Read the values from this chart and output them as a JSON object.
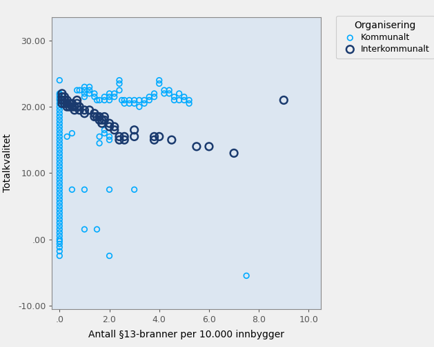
{
  "title": "",
  "xlabel": "Antall §13-branner per 10.000 innbygger",
  "ylabel": "Totalkvalitet",
  "xlim": [
    -0.3,
    10.5
  ],
  "ylim": [
    -10.5,
    33.5
  ],
  "xticks": [
    0,
    2,
    4,
    6,
    8,
    10
  ],
  "yticks": [
    -10,
    0,
    10,
    20,
    30
  ],
  "ytick_labels": [
    "-10.00",
    ".00",
    "10.00",
    "20.00",
    "30.00"
  ],
  "xtick_labels": [
    ".0",
    "2.0",
    "4.0",
    "6.0",
    "8.0",
    "10.0"
  ],
  "background_color": "#dce6f1",
  "kommunalt_color": "#00aaff",
  "interkommunalt_color": "#1a3a6e",
  "legend_title": "Organisering",
  "kommunalt_points": [
    [
      0.0,
      24.0
    ],
    [
      0.0,
      22.0
    ],
    [
      0.0,
      21.8
    ],
    [
      0.0,
      21.5
    ],
    [
      0.0,
      21.2
    ],
    [
      0.0,
      21.0
    ],
    [
      0.0,
      20.5
    ],
    [
      0.0,
      20.0
    ],
    [
      0.0,
      19.5
    ],
    [
      0.0,
      19.0
    ],
    [
      0.0,
      18.5
    ],
    [
      0.0,
      18.0
    ],
    [
      0.0,
      17.5
    ],
    [
      0.0,
      17.0
    ],
    [
      0.0,
      16.5
    ],
    [
      0.0,
      16.0
    ],
    [
      0.0,
      15.5
    ],
    [
      0.0,
      15.0
    ],
    [
      0.0,
      14.5
    ],
    [
      0.0,
      14.0
    ],
    [
      0.0,
      13.5
    ],
    [
      0.0,
      13.0
    ],
    [
      0.0,
      12.5
    ],
    [
      0.0,
      12.0
    ],
    [
      0.0,
      11.5
    ],
    [
      0.0,
      11.0
    ],
    [
      0.0,
      10.5
    ],
    [
      0.0,
      10.0
    ],
    [
      0.0,
      9.5
    ],
    [
      0.0,
      9.0
    ],
    [
      0.0,
      8.5
    ],
    [
      0.0,
      8.0
    ],
    [
      0.0,
      7.5
    ],
    [
      0.0,
      7.0
    ],
    [
      0.0,
      6.5
    ],
    [
      0.0,
      6.0
    ],
    [
      0.0,
      5.5
    ],
    [
      0.0,
      5.0
    ],
    [
      0.0,
      4.5
    ],
    [
      0.0,
      4.0
    ],
    [
      0.0,
      3.5
    ],
    [
      0.0,
      3.0
    ],
    [
      0.0,
      2.5
    ],
    [
      0.0,
      2.0
    ],
    [
      0.0,
      1.5
    ],
    [
      0.0,
      1.0
    ],
    [
      0.0,
      0.5
    ],
    [
      0.0,
      0.0
    ],
    [
      0.0,
      -0.3
    ],
    [
      0.0,
      -0.7
    ],
    [
      0.0,
      -1.2
    ],
    [
      0.0,
      -1.8
    ],
    [
      0.0,
      -2.5
    ],
    [
      0.5,
      7.5
    ],
    [
      1.0,
      1.5
    ],
    [
      1.0,
      7.5
    ],
    [
      1.5,
      1.5
    ],
    [
      2.0,
      -2.5
    ],
    [
      2.0,
      7.5
    ],
    [
      3.0,
      7.5
    ],
    [
      0.3,
      15.5
    ],
    [
      0.5,
      16.0
    ],
    [
      0.7,
      22.5
    ],
    [
      0.8,
      22.5
    ],
    [
      1.0,
      23.0
    ],
    [
      1.0,
      22.5
    ],
    [
      1.0,
      22.0
    ],
    [
      1.0,
      21.5
    ],
    [
      1.2,
      23.0
    ],
    [
      1.2,
      22.5
    ],
    [
      1.2,
      22.0
    ],
    [
      1.4,
      22.0
    ],
    [
      1.4,
      21.5
    ],
    [
      1.5,
      21.0
    ],
    [
      1.6,
      21.0
    ],
    [
      1.6,
      15.5
    ],
    [
      1.6,
      14.5
    ],
    [
      1.8,
      21.5
    ],
    [
      1.8,
      21.0
    ],
    [
      1.8,
      16.5
    ],
    [
      1.8,
      16.0
    ],
    [
      2.0,
      22.0
    ],
    [
      2.0,
      21.5
    ],
    [
      2.0,
      21.0
    ],
    [
      2.0,
      15.5
    ],
    [
      2.0,
      15.0
    ],
    [
      2.2,
      22.0
    ],
    [
      2.2,
      21.5
    ],
    [
      2.4,
      24.0
    ],
    [
      2.4,
      23.5
    ],
    [
      2.4,
      22.5
    ],
    [
      2.5,
      21.0
    ],
    [
      2.6,
      21.0
    ],
    [
      2.6,
      20.5
    ],
    [
      2.8,
      21.0
    ],
    [
      2.8,
      20.5
    ],
    [
      3.0,
      21.0
    ],
    [
      3.0,
      20.5
    ],
    [
      3.2,
      21.0
    ],
    [
      3.2,
      20.0
    ],
    [
      3.4,
      21.0
    ],
    [
      3.4,
      20.5
    ],
    [
      3.6,
      21.5
    ],
    [
      3.6,
      21.0
    ],
    [
      3.8,
      22.0
    ],
    [
      3.8,
      21.5
    ],
    [
      4.0,
      24.0
    ],
    [
      4.0,
      23.5
    ],
    [
      4.2,
      22.5
    ],
    [
      4.2,
      22.0
    ],
    [
      4.4,
      22.5
    ],
    [
      4.4,
      22.0
    ],
    [
      4.6,
      21.5
    ],
    [
      4.6,
      21.0
    ],
    [
      4.8,
      22.0
    ],
    [
      4.8,
      21.0
    ],
    [
      5.0,
      21.5
    ],
    [
      5.0,
      21.0
    ],
    [
      5.2,
      21.0
    ],
    [
      5.2,
      20.5
    ],
    [
      7.5,
      -5.5
    ]
  ],
  "interkommunalt_points": [
    [
      0.1,
      22.0
    ],
    [
      0.1,
      21.5
    ],
    [
      0.1,
      21.0
    ],
    [
      0.1,
      20.5
    ],
    [
      0.2,
      21.5
    ],
    [
      0.2,
      21.0
    ],
    [
      0.2,
      20.5
    ],
    [
      0.3,
      21.0
    ],
    [
      0.3,
      20.5
    ],
    [
      0.3,
      20.0
    ],
    [
      0.4,
      20.5
    ],
    [
      0.4,
      20.0
    ],
    [
      0.5,
      20.5
    ],
    [
      0.5,
      20.0
    ],
    [
      0.6,
      20.0
    ],
    [
      0.6,
      19.5
    ],
    [
      0.7,
      21.0
    ],
    [
      0.7,
      20.5
    ],
    [
      0.7,
      20.0
    ],
    [
      0.8,
      20.0
    ],
    [
      0.8,
      19.5
    ],
    [
      1.0,
      19.5
    ],
    [
      1.0,
      19.0
    ],
    [
      1.2,
      19.5
    ],
    [
      1.4,
      19.0
    ],
    [
      1.4,
      18.5
    ],
    [
      1.5,
      18.5
    ],
    [
      1.6,
      18.5
    ],
    [
      1.6,
      18.0
    ],
    [
      1.7,
      18.0
    ],
    [
      1.7,
      17.5
    ],
    [
      1.8,
      18.5
    ],
    [
      1.8,
      18.0
    ],
    [
      2.0,
      17.5
    ],
    [
      2.0,
      17.0
    ],
    [
      2.2,
      17.0
    ],
    [
      2.2,
      16.5
    ],
    [
      2.4,
      15.5
    ],
    [
      2.4,
      15.0
    ],
    [
      2.6,
      15.5
    ],
    [
      2.6,
      15.0
    ],
    [
      3.0,
      16.5
    ],
    [
      3.0,
      15.5
    ],
    [
      3.8,
      15.5
    ],
    [
      3.8,
      15.0
    ],
    [
      4.0,
      15.5
    ],
    [
      4.5,
      15.0
    ],
    [
      5.5,
      14.0
    ],
    [
      6.0,
      14.0
    ],
    [
      7.0,
      13.0
    ],
    [
      9.0,
      21.0
    ]
  ],
  "marker_size_k": 30,
  "marker_size_i": 60,
  "lw_k": 1.2,
  "lw_i": 1.8
}
